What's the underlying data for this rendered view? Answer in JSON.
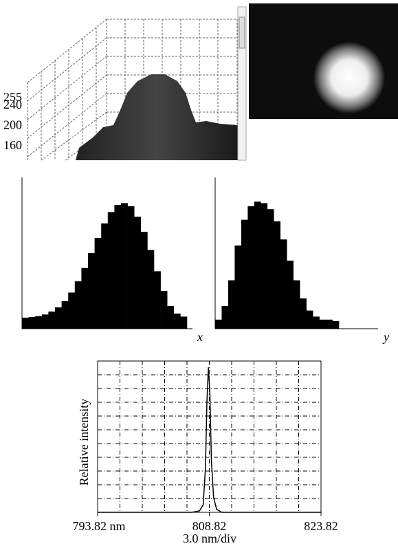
{
  "chart_data": [
    {
      "type": "surface",
      "zticks": [
        255,
        240,
        200,
        160
      ],
      "zlim": [
        160,
        255
      ]
    },
    {
      "type": "profile",
      "xlabel": "x",
      "ylim": [
        0,
        1
      ],
      "values": [
        0.073,
        0.077,
        0.083,
        0.094,
        0.113,
        0.141,
        0.182,
        0.239,
        0.313,
        0.401,
        0.5,
        0.6,
        0.696,
        0.771,
        0.818,
        0.83,
        0.81,
        0.74,
        0.64,
        0.52,
        0.38,
        0.25,
        0.15,
        0.1,
        0.08
      ]
    },
    {
      "type": "profile",
      "xlabel": "y",
      "ylim": [
        0,
        1
      ],
      "values": [
        0.06,
        0.15,
        0.32,
        0.55,
        0.72,
        0.81,
        0.84,
        0.83,
        0.79,
        0.71,
        0.59,
        0.45,
        0.32,
        0.2,
        0.12,
        0.08,
        0.06,
        0.06,
        0.05
      ]
    },
    {
      "type": "line",
      "ylabel": "Relative intensity",
      "xlabel": "3.0 nm/div",
      "x": [
        793.82,
        806.5,
        807.5,
        808.0,
        808.3,
        808.5,
        808.7,
        808.9,
        809.1,
        809.4,
        809.8,
        810.5,
        823.82
      ],
      "values": [
        0,
        0,
        0.01,
        0.05,
        0.3,
        0.75,
        0.98,
        0.8,
        0.35,
        0.1,
        0.02,
        0,
        0
      ],
      "xlim": [
        793.82,
        823.82
      ],
      "ylim": [
        0,
        1
      ],
      "xticks": [
        {
          "value": 793.82,
          "label": "793.82 nm"
        },
        808.82,
        823.82
      ],
      "grid": true
    }
  ]
}
